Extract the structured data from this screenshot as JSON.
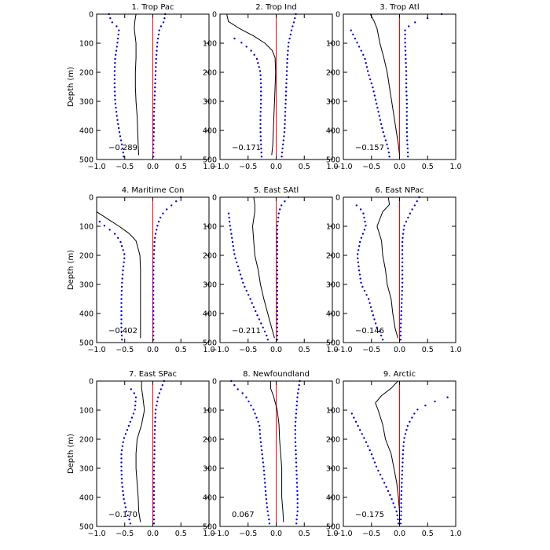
{
  "chart_data": {
    "type": "line",
    "ylabel": "Depth (m)",
    "xlim": [
      -1.0,
      1.0
    ],
    "ylim": [
      0,
      500
    ],
    "x_ticks": [
      -1.0,
      -0.5,
      0.0,
      0.5,
      1.0
    ],
    "x_tick_labels": [
      "−1.0",
      "−0.5",
      "0.0",
      "0.5",
      "1.0"
    ],
    "y_ticks": [
      0,
      100,
      200,
      300,
      400,
      500
    ],
    "y_tick_labels": [
      "0",
      "100",
      "200",
      "300",
      "400",
      "500"
    ],
    "colors": {
      "mean": "#000000",
      "bounds": "#0000cc",
      "zero_line": "#ff0000",
      "frame": "#000000"
    },
    "panels": [
      {
        "title": "1. Trop Pac",
        "value_label": "−0.289",
        "depths": [
          0,
          25,
          50,
          100,
          150,
          200,
          250,
          300,
          350,
          400,
          450,
          485
        ],
        "mean": [
          -0.3,
          -0.32,
          -0.33,
          -0.3,
          -0.3,
          -0.31,
          -0.31,
          -0.3,
          -0.28,
          -0.27,
          -0.26,
          -0.25
        ],
        "lower": [
          -0.78,
          -0.74,
          -0.6,
          -0.63,
          -0.67,
          -0.68,
          -0.68,
          -0.67,
          -0.64,
          -0.6,
          -0.55,
          -0.52
        ],
        "upper": [
          0.22,
          0.2,
          0.12,
          0.08,
          0.06,
          0.05,
          0.04,
          0.03,
          0.02,
          0.02,
          0.01,
          0.01
        ]
      },
      {
        "title": "2. Trop Ind",
        "value_label": "−0.171",
        "depths": [
          0,
          25,
          50,
          75,
          100,
          125,
          150,
          200,
          250,
          300,
          350,
          400,
          450,
          485
        ],
        "mean": [
          -0.88,
          -0.85,
          -0.65,
          -0.4,
          -0.2,
          -0.07,
          -0.02,
          -0.01,
          -0.02,
          -0.03,
          -0.04,
          -0.05,
          -0.06,
          -0.08
        ],
        "lower": [
          null,
          null,
          null,
          -0.82,
          -0.6,
          -0.45,
          -0.35,
          -0.28,
          -0.27,
          -0.27,
          -0.28,
          -0.28,
          -0.27,
          -0.26
        ],
        "upper": [
          0.35,
          0.32,
          0.28,
          0.25,
          0.22,
          0.21,
          0.2,
          0.19,
          0.18,
          0.17,
          0.16,
          0.15,
          0.12,
          0.1
        ]
      },
      {
        "title": "3. Trop Atl",
        "value_label": "−0.157",
        "depths": [
          0,
          25,
          50,
          100,
          150,
          200,
          250,
          300,
          350,
          400,
          450,
          485
        ],
        "mean": [
          -0.52,
          -0.45,
          -0.4,
          -0.35,
          -0.28,
          -0.22,
          -0.18,
          -0.14,
          -0.1,
          -0.06,
          -0.02,
          0.0
        ],
        "lower": [
          null,
          null,
          -0.88,
          -0.75,
          -0.62,
          -0.56,
          -0.48,
          -0.42,
          -0.36,
          -0.3,
          -0.22,
          -0.18
        ],
        "upper": [
          0.75,
          0.3,
          0.1,
          0.1,
          0.11,
          0.12,
          0.12,
          0.13,
          0.13,
          0.13,
          0.14,
          0.15
        ]
      },
      {
        "title": "4. Maritime Con",
        "value_label": "−0.402",
        "depths": [
          0,
          25,
          50,
          75,
          100,
          125,
          150,
          200,
          250,
          300,
          350,
          400,
          450,
          485
        ],
        "mean": [
          null,
          null,
          -1.0,
          -0.8,
          -0.6,
          -0.42,
          -0.3,
          -0.23,
          -0.22,
          -0.22,
          -0.22,
          -0.22,
          -0.22,
          -0.22
        ],
        "lower": [
          null,
          null,
          null,
          -1.0,
          -0.85,
          -0.68,
          -0.58,
          -0.5,
          -0.53,
          -0.55,
          -0.56,
          -0.56,
          -0.56,
          -0.55
        ],
        "upper": [
          0.5,
          0.35,
          0.2,
          0.12,
          0.08,
          0.05,
          0.03,
          0.02,
          0.01,
          0.01,
          0.01,
          0.01,
          0.01,
          0.01
        ]
      },
      {
        "title": "5. East SAtl",
        "value_label": "−0.211",
        "depths": [
          0,
          25,
          50,
          100,
          150,
          200,
          250,
          300,
          350,
          400,
          450,
          485
        ],
        "mean": [
          -0.4,
          -0.38,
          -0.38,
          -0.42,
          -0.4,
          -0.38,
          -0.32,
          -0.28,
          -0.22,
          -0.15,
          -0.08,
          -0.03
        ],
        "lower": [
          null,
          null,
          -0.85,
          -0.82,
          -0.78,
          -0.74,
          -0.66,
          -0.58,
          -0.46,
          -0.35,
          -0.23,
          -0.15
        ],
        "upper": [
          0.22,
          0.1,
          0.05,
          0.02,
          0.02,
          0.02,
          0.02,
          0.02,
          0.02,
          0.02,
          0.02,
          0.02
        ]
      },
      {
        "title": "6. East NPac",
        "value_label": "−0.146",
        "depths": [
          0,
          25,
          50,
          100,
          150,
          200,
          250,
          300,
          350,
          400,
          450,
          485
        ],
        "mean": [
          -0.2,
          -0.18,
          -0.3,
          -0.4,
          -0.32,
          -0.3,
          -0.25,
          -0.22,
          -0.15,
          -0.12,
          -0.08,
          -0.03
        ],
        "lower": [
          null,
          -0.78,
          -0.65,
          -0.6,
          -0.7,
          -0.75,
          -0.72,
          -0.68,
          -0.55,
          -0.48,
          -0.4,
          -0.3
        ],
        "upper": [
          0.35,
          0.28,
          0.2,
          0.08,
          0.05,
          0.05,
          0.05,
          0.05,
          0.04,
          0.03,
          0.02,
          0.02
        ]
      },
      {
        "title": "7. East SPac",
        "value_label": "−0.170",
        "depths": [
          0,
          25,
          50,
          100,
          150,
          200,
          250,
          300,
          350,
          400,
          450,
          485
        ],
        "mean": [
          -0.2,
          -0.2,
          -0.18,
          -0.15,
          -0.2,
          -0.28,
          -0.3,
          -0.3,
          -0.28,
          -0.26,
          -0.25,
          -0.22
        ],
        "lower": [
          null,
          -0.4,
          -0.3,
          -0.32,
          -0.42,
          -0.52,
          -0.56,
          -0.56,
          -0.55,
          -0.52,
          -0.47,
          -0.4
        ],
        "upper": [
          0.2,
          0.15,
          0.1,
          0.05,
          0.04,
          0.03,
          0.03,
          0.02,
          0.02,
          0.02,
          0.02,
          0.02
        ]
      },
      {
        "title": "8. Newfoundland",
        "value_label": "0.067",
        "depths": [
          0,
          25,
          50,
          100,
          150,
          200,
          250,
          300,
          350,
          400,
          450,
          485
        ],
        "mean": [
          -0.1,
          -0.1,
          -0.05,
          0.02,
          0.05,
          0.06,
          0.08,
          0.1,
          0.1,
          0.1,
          0.12,
          0.13
        ],
        "lower": [
          -0.8,
          -0.7,
          -0.55,
          -0.4,
          -0.3,
          -0.28,
          -0.25,
          -0.22,
          -0.2,
          -0.18,
          -0.15,
          -0.12
        ],
        "upper": [
          0.42,
          0.4,
          0.38,
          0.36,
          0.34,
          0.34,
          0.35,
          0.36,
          0.37,
          0.38,
          0.38,
          0.36
        ]
      },
      {
        "title": "9. Arctic",
        "value_label": "−0.175",
        "depths": [
          0,
          25,
          50,
          75,
          100,
          150,
          200,
          250,
          300,
          350,
          400,
          450,
          485
        ],
        "mean": [
          -0.03,
          -0.15,
          -0.32,
          -0.43,
          -0.38,
          -0.3,
          -0.25,
          -0.15,
          -0.1,
          -0.05,
          -0.02,
          0.0,
          0.0
        ],
        "lower": [
          null,
          null,
          null,
          null,
          -0.88,
          -0.75,
          -0.62,
          -0.5,
          -0.4,
          -0.27,
          -0.15,
          -0.05,
          -0.02
        ],
        "upper": [
          null,
          null,
          0.95,
          0.55,
          0.3,
          0.15,
          0.08,
          0.06,
          0.05,
          0.04,
          0.03,
          0.03,
          0.02
        ]
      }
    ]
  }
}
